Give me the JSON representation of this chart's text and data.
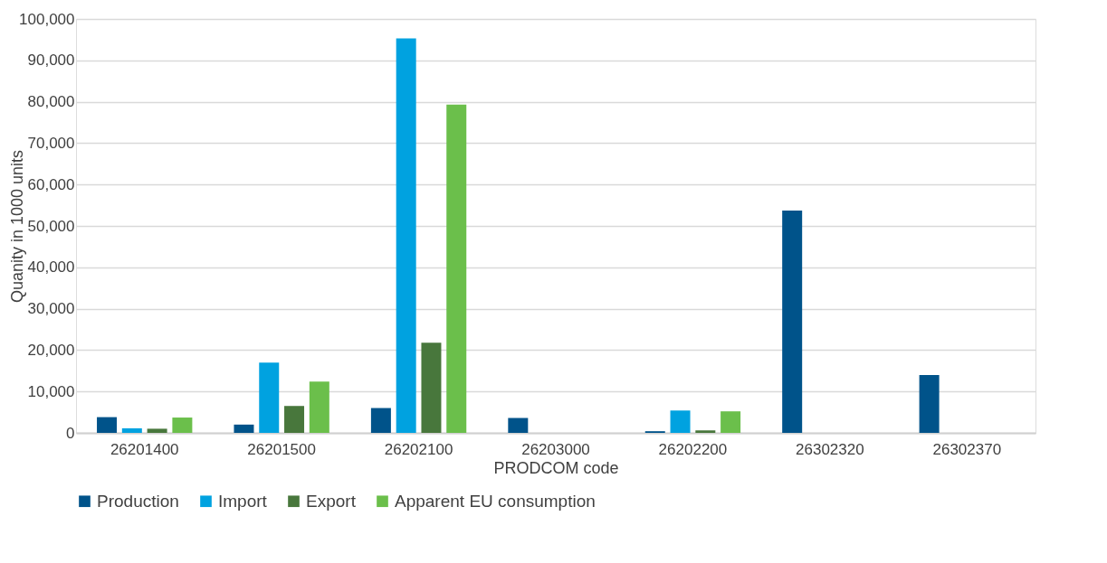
{
  "chart_data": {
    "type": "bar",
    "xlabel": "PRODCOM code",
    "ylabel": "Quanity in 1000 units",
    "categories": [
      "26201400",
      "26201500",
      "26202100",
      "26203000",
      "26202200",
      "26302320",
      "26302370"
    ],
    "series": [
      {
        "name": "Production",
        "color": "#00538a",
        "values": [
          3800,
          2000,
          6000,
          3600,
          400,
          53700,
          14000
        ]
      },
      {
        "name": "Import",
        "color": "#00a2e0",
        "values": [
          1100,
          17000,
          95300,
          null,
          5400,
          null,
          null
        ]
      },
      {
        "name": "Export",
        "color": "#48773c",
        "values": [
          1000,
          6500,
          21800,
          null,
          600,
          null,
          null
        ]
      },
      {
        "name": "Apparent EU consumption",
        "color": "#6bbf4b",
        "values": [
          3700,
          12400,
          79300,
          null,
          5200,
          null,
          null
        ]
      }
    ],
    "ylim": [
      0,
      100000
    ],
    "yticks": [
      0,
      {
        "value": 10000,
        "label": "10,000"
      },
      {
        "value": 20000,
        "label": "20,000"
      },
      {
        "value": 30000,
        "label": "30,000"
      },
      {
        "value": 40000,
        "label": "40,000"
      },
      {
        "value": 50000,
        "label": "50,000"
      },
      {
        "value": 60000,
        "label": "60,000"
      },
      {
        "value": 70000,
        "label": "70,000"
      },
      {
        "value": 80000,
        "label": "80,000"
      },
      {
        "value": 90000,
        "label": "90,000"
      },
      {
        "value": 100000,
        "label": "100,000"
      }
    ],
    "grid": "y",
    "legend": "bottom"
  }
}
